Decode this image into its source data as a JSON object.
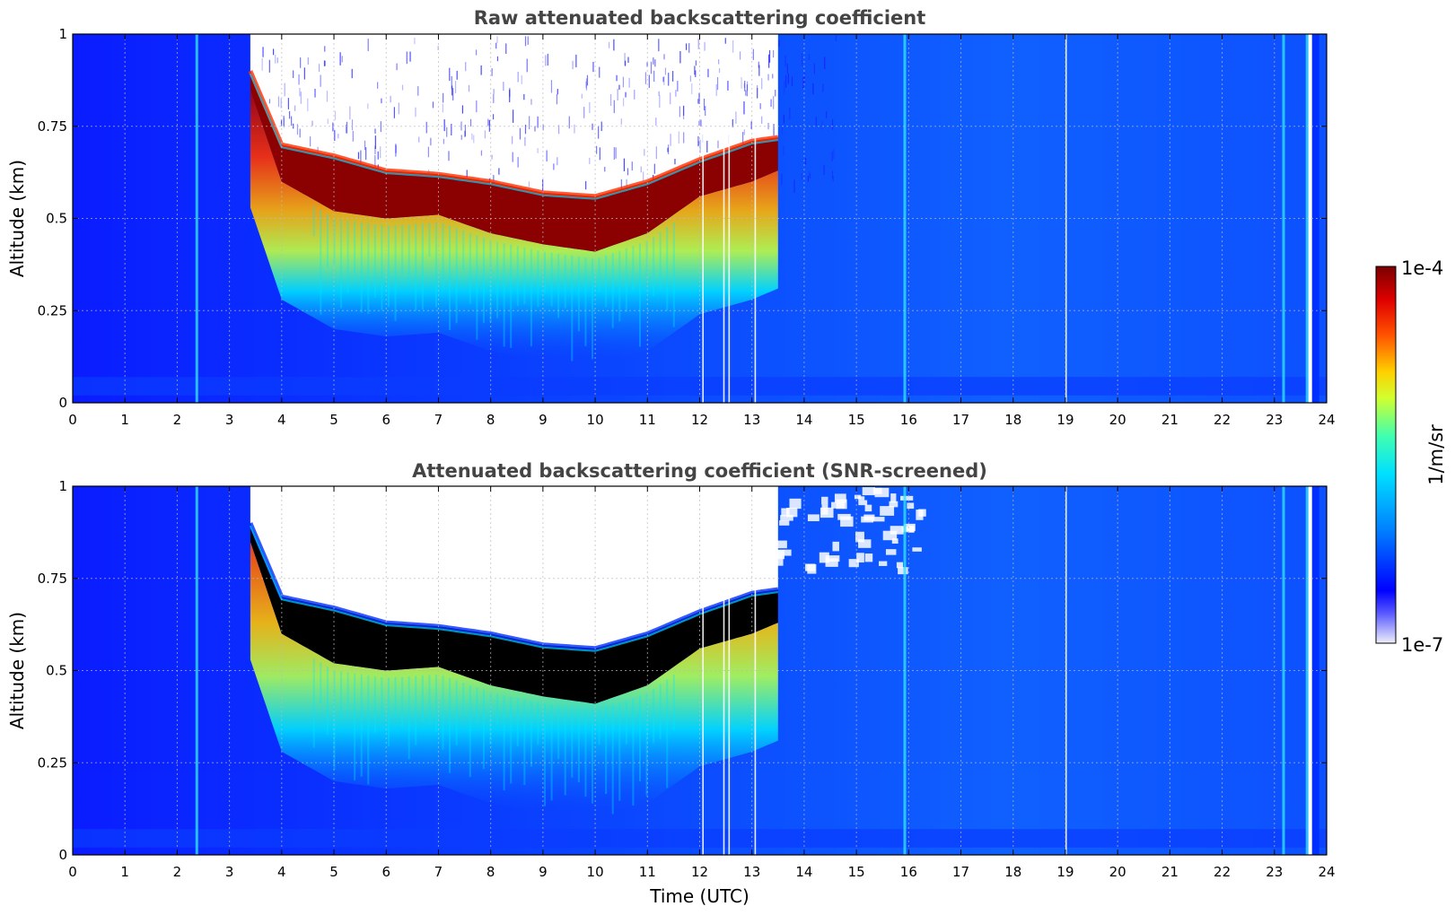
{
  "chart_data": [
    {
      "type": "heatmap",
      "title": "Raw attenuated backscattering coefficient",
      "xlabel": "",
      "ylabel": "Altitude (km)",
      "xlim": [
        0,
        24
      ],
      "ylim": [
        0,
        1
      ],
      "x_ticks": [
        "0",
        "1",
        "2",
        "3",
        "4",
        "5",
        "6",
        "7",
        "8",
        "9",
        "10",
        "11",
        "12",
        "13",
        "14",
        "15",
        "16",
        "17",
        "18",
        "19",
        "20",
        "21",
        "22",
        "23",
        "24"
      ],
      "y_ticks": [
        "0",
        "0.25",
        "0.5",
        "0.75",
        "1"
      ],
      "grid": true,
      "cloud_layer": {
        "time": [
          3.4,
          4,
          5,
          6,
          7,
          8,
          9,
          10,
          11,
          12,
          13,
          13.5
        ],
        "top_km": [
          0.9,
          0.7,
          0.67,
          0.63,
          0.62,
          0.6,
          0.57,
          0.56,
          0.6,
          0.66,
          0.71,
          0.72
        ],
        "base_km": [
          0.85,
          0.6,
          0.52,
          0.5,
          0.51,
          0.46,
          0.43,
          0.41,
          0.46,
          0.56,
          0.6,
          0.63
        ]
      },
      "signal_gaps_utc": [
        12.05,
        12.45,
        12.55,
        13.05,
        19.0
      ],
      "screened": false
    },
    {
      "type": "heatmap",
      "title": "Attenuated backscattering coefficient (SNR-screened)",
      "xlabel": "Time (UTC)",
      "ylabel": "Altitude (km)",
      "xlim": [
        0,
        24
      ],
      "ylim": [
        0,
        1
      ],
      "x_ticks": [
        "0",
        "1",
        "2",
        "3",
        "4",
        "5",
        "6",
        "7",
        "8",
        "9",
        "10",
        "11",
        "12",
        "13",
        "14",
        "15",
        "16",
        "17",
        "18",
        "19",
        "20",
        "21",
        "22",
        "23",
        "24"
      ],
      "y_ticks": [
        "0",
        "0.25",
        "0.5",
        "0.75",
        "1"
      ],
      "grid": true,
      "cloud_layer": {
        "time": [
          3.4,
          4,
          5,
          6,
          7,
          8,
          9,
          10,
          11,
          12,
          13,
          13.5
        ],
        "top_km": [
          0.9,
          0.7,
          0.67,
          0.63,
          0.62,
          0.6,
          0.57,
          0.56,
          0.6,
          0.66,
          0.71,
          0.72
        ],
        "base_km": [
          0.85,
          0.6,
          0.52,
          0.5,
          0.51,
          0.46,
          0.43,
          0.41,
          0.46,
          0.56,
          0.6,
          0.63
        ]
      },
      "signal_gaps_utc": [
        12.05,
        12.45,
        12.55,
        13.05,
        19.0
      ],
      "screened": true
    }
  ],
  "colorbar": {
    "label": "1/m/sr",
    "max_label": "1e-4",
    "min_label": "1e-7",
    "scale": "log",
    "colormap": "jet",
    "colors": [
      "#e8e8f8",
      "#0000ff",
      "#0077ff",
      "#00d0ff",
      "#80ff80",
      "#ffff00",
      "#ff8000",
      "#ff0000",
      "#800000"
    ]
  },
  "colors": {
    "background_blue": "#0a2cff",
    "saturated_cloud": "#8b0000",
    "screened_cloud": "#000000",
    "grid": "#bbbbbb"
  }
}
